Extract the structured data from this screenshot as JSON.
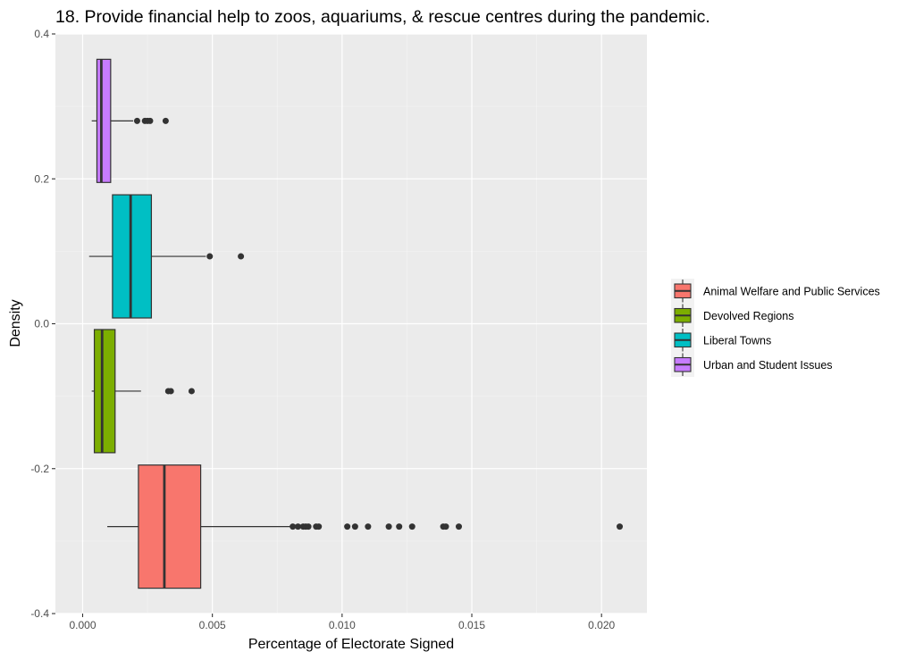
{
  "chart_data": {
    "type": "boxplot",
    "title": "18. Provide financial help to zoos, aquariums, & rescue centres during the pandemic.",
    "xlabel": "Percentage of Electorate Signed",
    "ylabel": "Density",
    "xlim": [
      -0.00105,
      0.02175
    ],
    "ylim": [
      -0.4,
      0.4
    ],
    "x_ticks": [
      0.0,
      0.005,
      0.01,
      0.015,
      0.02
    ],
    "x_tick_labels": [
      "0.000",
      "0.005",
      "0.010",
      "0.015",
      "0.020"
    ],
    "y_ticks": [
      -0.4,
      -0.2,
      0.0,
      0.2,
      0.4
    ],
    "y_tick_labels": [
      "-0.4",
      "-0.2",
      "0.0",
      "0.2",
      "0.4"
    ],
    "grid": true,
    "legend_position": "right",
    "series": [
      {
        "name": "Animal Welfare and Public Services",
        "color": "#F8766D",
        "y_center": -0.28,
        "y_range": [
          -0.365,
          -0.195
        ],
        "whisker_low": 0.00095,
        "q1": 0.00215,
        "median": 0.00315,
        "q3": 0.00455,
        "whisker_high": 0.00815,
        "outliers": [
          0.0081,
          0.0083,
          0.0085,
          0.0086,
          0.0087,
          0.009,
          0.0091,
          0.0102,
          0.0105,
          0.011,
          0.0118,
          0.0122,
          0.0127,
          0.0139,
          0.014,
          0.0145,
          0.0207
        ]
      },
      {
        "name": "Devolved Regions",
        "color": "#7CAE00",
        "y_center": -0.093,
        "y_range": [
          -0.178,
          -0.008
        ],
        "whisker_low": 0.00035,
        "q1": 0.00045,
        "median": 0.00075,
        "q3": 0.00125,
        "whisker_high": 0.00225,
        "outliers": [
          0.0033,
          0.0034,
          0.0042
        ]
      },
      {
        "name": "Liberal Towns",
        "color": "#00BFC4",
        "y_center": 0.093,
        "y_range": [
          0.008,
          0.178
        ],
        "whisker_low": 0.00025,
        "q1": 0.00115,
        "median": 0.00185,
        "q3": 0.00265,
        "whisker_high": 0.00475,
        "outliers": [
          0.0049,
          0.0061
        ]
      },
      {
        "name": "Urban and Student Issues",
        "color": "#C77CFF",
        "y_center": 0.28,
        "y_range": [
          0.195,
          0.365
        ],
        "whisker_low": 0.00035,
        "q1": 0.00055,
        "median": 0.00072,
        "q3": 0.00108,
        "whisker_high": 0.00195,
        "outliers": [
          0.0021,
          0.0024,
          0.0025,
          0.0026,
          0.0032
        ]
      }
    ]
  }
}
